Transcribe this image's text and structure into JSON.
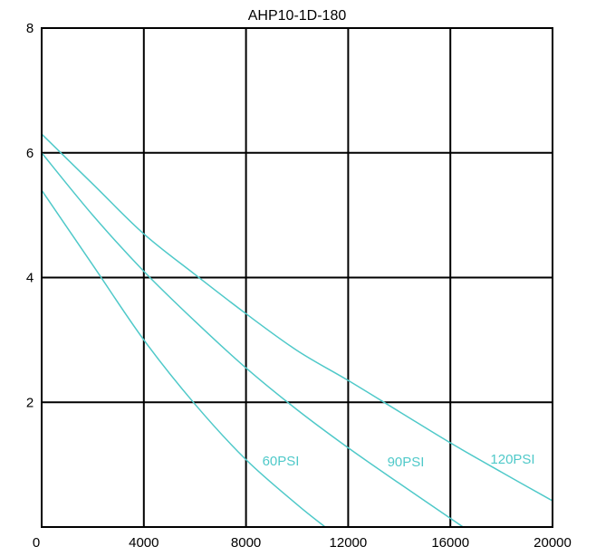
{
  "chart_data": {
    "type": "line",
    "title": "AHP10-1D-180",
    "xlabel": "",
    "ylabel": "",
    "xlim": [
      0,
      20000
    ],
    "ylim": [
      0,
      8
    ],
    "x_ticks": [
      0,
      4000,
      8000,
      12000,
      16000,
      20000
    ],
    "y_ticks": [
      2,
      4,
      6,
      8
    ],
    "x_tick_labels": [
      "0",
      "4000",
      "8000",
      "12000",
      "16000",
      "20000"
    ],
    "y_tick_labels": [
      "2",
      "4",
      "6",
      "8"
    ],
    "grid": true,
    "series_color": "#4fc9c9",
    "axis_color": "#000000",
    "series": [
      {
        "name": "60PSI",
        "x": [
          0,
          2000,
          4000,
          6000,
          8000,
          10000,
          11100
        ],
        "y": [
          5.4,
          4.2,
          3.0,
          1.97,
          1.08,
          0.36,
          0.0
        ]
      },
      {
        "name": "90PSI",
        "x": [
          0,
          2000,
          4000,
          6000,
          8000,
          10000,
          12000,
          14000,
          16000,
          16500
        ],
        "y": [
          6.0,
          5.0,
          4.1,
          3.3,
          2.55,
          1.88,
          1.27,
          0.7,
          0.14,
          0.0
        ]
      },
      {
        "name": "120PSI",
        "x": [
          0,
          2000,
          4000,
          6000,
          8000,
          10000,
          12000,
          14000,
          16000,
          18000,
          20000
        ],
        "y": [
          6.3,
          5.5,
          4.7,
          4.05,
          3.42,
          2.83,
          2.35,
          1.85,
          1.35,
          0.88,
          0.42
        ]
      }
    ]
  }
}
